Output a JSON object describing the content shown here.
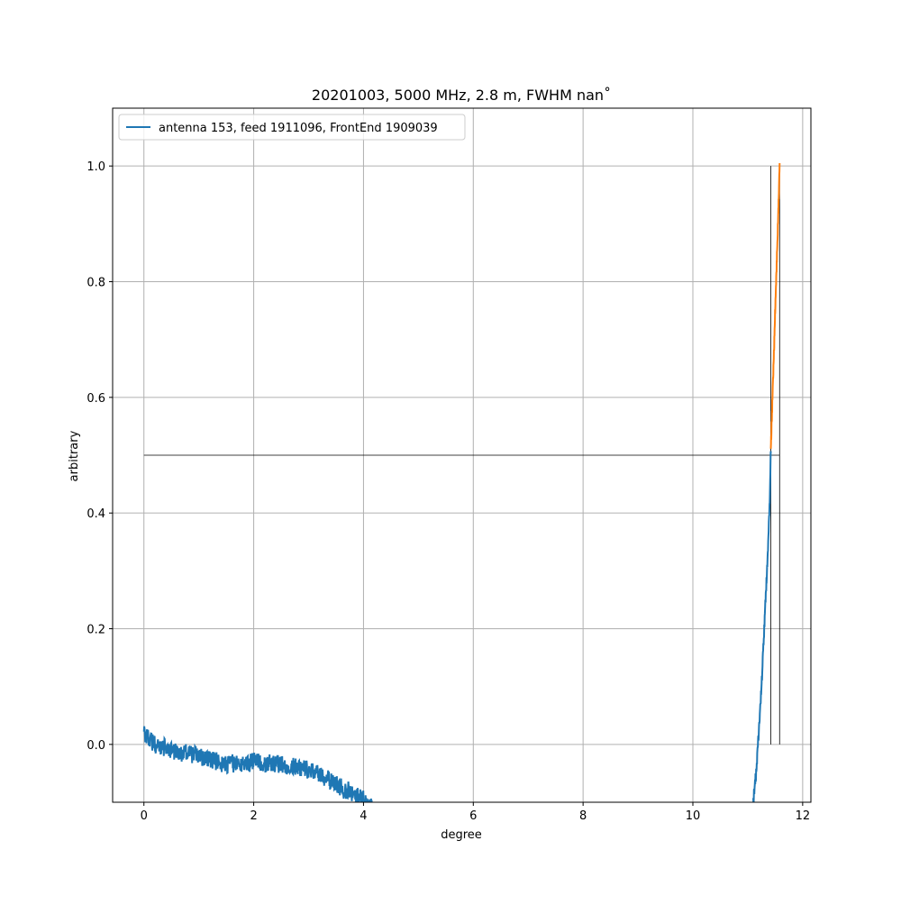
{
  "chart_data": {
    "type": "line",
    "title": "20201003, 5000 MHz, 2.8 m, FWHM nan˚",
    "xlabel": "degree",
    "ylabel": "arbitrary",
    "xlim": [
      -0.57,
      12.15
    ],
    "ylim": [
      -0.1,
      1.1
    ],
    "xticks": [
      0,
      2,
      4,
      6,
      8,
      10,
      12
    ],
    "yticks": [
      0.0,
      0.2,
      0.4,
      0.6,
      0.8,
      1.0
    ],
    "xtick_labels": [
      "0",
      "2",
      "4",
      "6",
      "8",
      "10",
      "12"
    ],
    "ytick_labels": [
      "0.0",
      "0.2",
      "0.4",
      "0.6",
      "0.8",
      "1.0"
    ],
    "grid": true,
    "legend_position": "upper-left",
    "series": [
      {
        "name": "antenna 153, feed 1911096, FrontEnd 1909039",
        "color": "#1f77b4",
        "kind": "noisy-profile",
        "x": [
          0.0,
          0.2,
          0.5,
          1.0,
          1.5,
          2.0,
          2.5,
          2.9,
          3.2,
          3.5,
          3.8,
          4.1,
          11.1,
          11.15,
          11.2,
          11.25,
          11.3,
          11.35,
          11.4,
          11.42
        ],
        "y": [
          0.02,
          0.0,
          -0.01,
          -0.02,
          -0.035,
          -0.03,
          -0.035,
          -0.04,
          -0.05,
          -0.07,
          -0.085,
          -0.1,
          -0.1,
          -0.05,
          0.02,
          0.1,
          0.2,
          0.3,
          0.42,
          0.51
        ],
        "noise": 0.012
      },
      {
        "color": "#ff7f0e",
        "kind": "fit",
        "x": [
          11.42,
          11.45,
          11.5,
          11.55,
          11.58
        ],
        "y": [
          0.51,
          0.6,
          0.75,
          0.9,
          1.0
        ]
      }
    ],
    "reference_lines": [
      {
        "orientation": "horizontal",
        "value": 0.5,
        "from": 0.0,
        "to": 11.58,
        "color": "#000000"
      },
      {
        "orientation": "vertical",
        "value": 11.42,
        "from": 0.0,
        "to": 1.0,
        "color": "#000000"
      },
      {
        "orientation": "vertical",
        "value": 11.58,
        "from": 0.0,
        "to": 1.0,
        "color": "#000000"
      }
    ]
  }
}
